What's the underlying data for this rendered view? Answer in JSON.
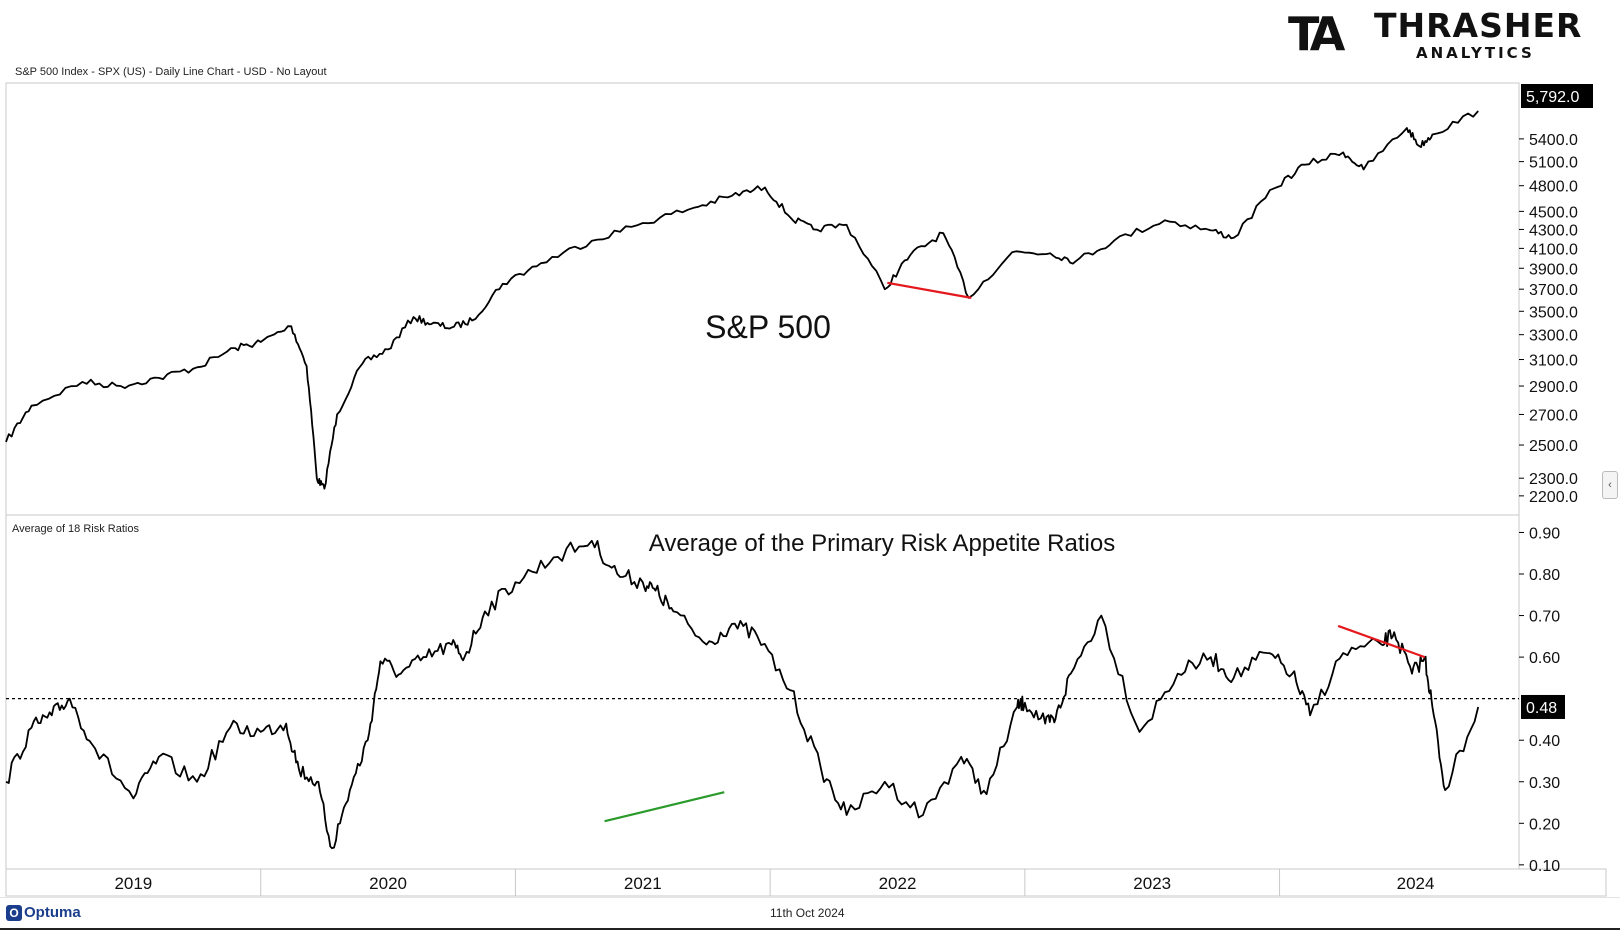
{
  "header": {
    "description": "S&P 500 Index - SPX (US) - Daily Line Chart - USD - No Layout"
  },
  "brand": {
    "mark": "TA",
    "name": "THRASHER",
    "sub": "ANALYTICS",
    "accent": "#2c8a2f"
  },
  "footer": {
    "brand": "Optuma",
    "date": "11th Oct 2024"
  },
  "ui": {
    "collapse_icon": "chevron-left-icon"
  },
  "chart_data": [
    {
      "type": "line",
      "panel": "top",
      "title": "S&P 500",
      "scale": "log",
      "ylim": [
        2150,
        6000
      ],
      "yticks": [
        5400,
        5100,
        4800,
        4500,
        4300,
        4100,
        3900,
        3700,
        3500,
        3300,
        3100,
        2900,
        2700,
        2500,
        2300,
        2200
      ],
      "ytick_labels": [
        "5400.0",
        "5100.0",
        "4800.0",
        "4500.0",
        "4300.0",
        "4100.0",
        "3900.0",
        "3700.0",
        "3500.0",
        "3300.0",
        "3100.0",
        "2900.0",
        "2700.0",
        "2500.0",
        "2300.0",
        "2200.0"
      ],
      "last_value": 5792.0,
      "last_value_label": "5,792.0",
      "x": [
        2019.0,
        2019.1,
        2019.3,
        2019.45,
        2019.6,
        2019.75,
        2019.9,
        2020.0,
        2020.12,
        2020.18,
        2020.22,
        2020.25,
        2020.3,
        2020.4,
        2020.5,
        2020.6,
        2020.67,
        2020.75,
        2020.83,
        2020.95,
        2021.1,
        2021.3,
        2021.5,
        2021.7,
        2021.85,
        2021.98,
        2022.08,
        2022.17,
        2022.3,
        2022.45,
        2022.55,
        2022.68,
        2022.78,
        2022.95,
        2023.1,
        2023.2,
        2023.35,
        2023.55,
        2023.73,
        2023.82,
        2023.98,
        2024.1,
        2024.25,
        2024.33,
        2024.5,
        2024.55,
        2024.6,
        2024.78
      ],
      "values": [
        2520,
        2760,
        2930,
        2900,
        2960,
        3040,
        3190,
        3240,
        3370,
        3050,
        2300,
        2240,
        2700,
        3070,
        3180,
        3450,
        3390,
        3360,
        3420,
        3750,
        3950,
        4180,
        4370,
        4540,
        4680,
        4780,
        4430,
        4300,
        4350,
        3700,
        4030,
        4260,
        3620,
        4060,
        4050,
        3970,
        4180,
        4400,
        4290,
        4210,
        4770,
        5060,
        5220,
        5000,
        5550,
        5300,
        5460,
        5792
      ],
      "annotations": [
        {
          "type": "trendline",
          "color": "#e5191d",
          "x": [
            2022.46,
            2022.79
          ],
          "y": [
            3760,
            3620
          ]
        }
      ]
    },
    {
      "type": "line",
      "panel": "bottom",
      "series_name": "Average of 18 Risk Ratios",
      "title": "Average of the Primary Risk Appetite Ratios",
      "ylim": [
        0.09,
        0.93
      ],
      "yticks": [
        0.9,
        0.8,
        0.7,
        0.6,
        0.4,
        0.3,
        0.2,
        0.1
      ],
      "ytick_labels": [
        "0.90",
        "0.80",
        "0.70",
        "0.60",
        "0.40",
        "0.30",
        "0.20",
        "0.10"
      ],
      "reference_line": 0.5,
      "last_value": 0.48,
      "last_value_label": "0.48",
      "x": [
        2019.0,
        2019.1,
        2019.18,
        2019.25,
        2019.35,
        2019.5,
        2019.6,
        2019.75,
        2019.88,
        2020.0,
        2020.1,
        2020.15,
        2020.22,
        2020.28,
        2020.35,
        2020.42,
        2020.47,
        2020.55,
        2020.65,
        2020.75,
        2020.8,
        2020.88,
        2021.0,
        2021.15,
        2021.3,
        2021.4,
        2021.5,
        2021.55,
        2021.62,
        2021.75,
        2021.85,
        2021.95,
        2022.08,
        2022.2,
        2022.3,
        2022.45,
        2022.6,
        2022.75,
        2022.85,
        2022.97,
        2023.0,
        2023.08,
        2023.12,
        2023.18,
        2023.3,
        2023.45,
        2023.6,
        2023.73,
        2023.82,
        2023.95,
        2024.05,
        2024.12,
        2024.25,
        2024.4,
        2024.45,
        2024.52,
        2024.57,
        2024.6,
        2024.65,
        2024.78
      ],
      "values": [
        0.3,
        0.43,
        0.46,
        0.5,
        0.38,
        0.26,
        0.36,
        0.3,
        0.43,
        0.42,
        0.44,
        0.33,
        0.3,
        0.14,
        0.28,
        0.4,
        0.59,
        0.56,
        0.6,
        0.63,
        0.6,
        0.71,
        0.78,
        0.84,
        0.88,
        0.8,
        0.78,
        0.76,
        0.71,
        0.63,
        0.68,
        0.65,
        0.52,
        0.33,
        0.22,
        0.3,
        0.22,
        0.36,
        0.27,
        0.48,
        0.49,
        0.44,
        0.45,
        0.56,
        0.7,
        0.42,
        0.56,
        0.6,
        0.55,
        0.61,
        0.56,
        0.46,
        0.61,
        0.63,
        0.66,
        0.56,
        0.6,
        0.48,
        0.28,
        0.48
      ],
      "annotations": [
        {
          "type": "trendline",
          "color": "#2a9a2a",
          "x": [
            2021.35,
            2021.82
          ],
          "y": [
            0.205,
            0.275
          ]
        },
        {
          "type": "trendline",
          "color": "#e5191d",
          "x": [
            2024.23,
            2024.57
          ],
          "y": [
            0.675,
            0.6
          ]
        }
      ]
    }
  ],
  "x_axis": {
    "labels": [
      "2019",
      "2020",
      "2021",
      "2022",
      "2023",
      "2024"
    ],
    "xlim": [
      2019.0,
      2024.94
    ]
  }
}
